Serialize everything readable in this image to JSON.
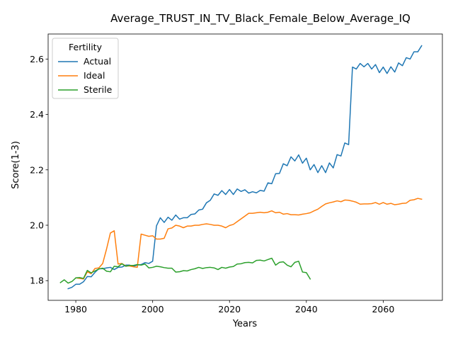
{
  "chart_data": {
    "type": "line",
    "title": "Average_TRUST_IN_TV_Black_Female_Below_Average_IQ",
    "xlabel": "Years",
    "ylabel": "Score(1-3)",
    "xlim": [
      1972.8,
      2075.4
    ],
    "ylim": [
      1.7289,
      2.6904
    ],
    "xticks": [
      1980,
      2000,
      2020,
      2040,
      2060
    ],
    "yticks": [
      1.8,
      2.0,
      2.2,
      2.4,
      2.6
    ],
    "xtick_labels": [
      "1980",
      "2000",
      "2020",
      "2040",
      "2060"
    ],
    "ytick_labels": [
      "1.8",
      "2.0",
      "2.2",
      "2.4",
      "2.6"
    ],
    "grid": false,
    "legend": {
      "title": "Fertility",
      "position": "top-left"
    },
    "series": [
      {
        "name": "Actual",
        "color": "#1f77b4",
        "x": [
          1978,
          1979,
          1980,
          1981,
          1982,
          1983,
          1984,
          1985,
          1986,
          1987,
          1988,
          1989,
          1990,
          1991,
          1992,
          1993,
          1994,
          1995,
          1996,
          1997,
          1998,
          1999,
          2000,
          2001,
          2002,
          2003,
          2004,
          2005,
          2006,
          2007,
          2008,
          2009,
          2010,
          2011,
          2012,
          2013,
          2014,
          2015,
          2016,
          2017,
          2018,
          2019,
          2020,
          2021,
          2022,
          2023,
          2024,
          2025,
          2026,
          2027,
          2028,
          2029,
          2030,
          2031,
          2032,
          2033,
          2034,
          2035,
          2036,
          2037,
          2038,
          2039,
          2040,
          2041,
          2042,
          2043,
          2044,
          2045,
          2046,
          2047,
          2048,
          2049,
          2050,
          2051,
          2052,
          2053,
          2054,
          2055,
          2056,
          2057,
          2058,
          2059,
          2060,
          2061,
          2062,
          2063,
          2064,
          2065,
          2066,
          2067,
          2068,
          2069,
          2070
        ],
        "y": [
          1.771,
          1.776,
          1.787,
          1.787,
          1.796,
          1.815,
          1.814,
          1.83,
          1.843,
          1.843,
          1.846,
          1.848,
          1.84,
          1.848,
          1.849,
          1.856,
          1.856,
          1.852,
          1.856,
          1.858,
          1.865,
          1.862,
          1.87,
          1.998,
          2.027,
          2.01,
          2.029,
          2.018,
          2.037,
          2.022,
          2.027,
          2.027,
          2.039,
          2.041,
          2.055,
          2.058,
          2.081,
          2.09,
          2.113,
          2.108,
          2.125,
          2.111,
          2.129,
          2.111,
          2.131,
          2.122,
          2.128,
          2.116,
          2.121,
          2.117,
          2.126,
          2.123,
          2.153,
          2.15,
          2.186,
          2.187,
          2.222,
          2.215,
          2.247,
          2.232,
          2.254,
          2.224,
          2.242,
          2.2,
          2.219,
          2.19,
          2.215,
          2.19,
          2.225,
          2.207,
          2.255,
          2.25,
          2.297,
          2.291,
          2.571,
          2.564,
          2.584,
          2.572,
          2.584,
          2.564,
          2.58,
          2.551,
          2.571,
          2.548,
          2.572,
          2.553,
          2.586,
          2.576,
          2.605,
          2.6,
          2.626,
          2.626,
          2.648
        ]
      },
      {
        "name": "Ideal",
        "color": "#ff7f0e",
        "x": [
          1980,
          1981,
          1982,
          1983,
          1984,
          1985,
          1986,
          1987,
          1988,
          1989,
          1990,
          1991,
          1992,
          1993,
          1994,
          1995,
          1996,
          1997,
          1998,
          1999,
          2000,
          2001,
          2002,
          2003,
          2004,
          2005,
          2006,
          2007,
          2008,
          2009,
          2010,
          2011,
          2012,
          2013,
          2014,
          2015,
          2016,
          2017,
          2018,
          2019,
          2020,
          2021,
          2022,
          2023,
          2024,
          2025,
          2026,
          2027,
          2028,
          2029,
          2030,
          2031,
          2032,
          2033,
          2034,
          2035,
          2036,
          2037,
          2038,
          2039,
          2040,
          2041,
          2042,
          2043,
          2044,
          2045,
          2046,
          2047,
          2048,
          2049,
          2050,
          2051,
          2052,
          2053,
          2054,
          2055,
          2056,
          2057,
          2058,
          2059,
          2060,
          2061,
          2062,
          2063,
          2064,
          2065,
          2066,
          2067,
          2068,
          2069,
          2070
        ],
        "y": [
          1.81,
          1.808,
          1.806,
          1.832,
          1.825,
          1.844,
          1.846,
          1.862,
          1.914,
          1.972,
          1.98,
          1.86,
          1.862,
          1.853,
          1.853,
          1.85,
          1.848,
          1.968,
          1.964,
          1.96,
          1.962,
          1.95,
          1.95,
          1.953,
          1.987,
          1.99,
          2.0,
          1.997,
          1.991,
          1.997,
          1.997,
          2.0,
          2.0,
          2.003,
          2.005,
          2.003,
          2.0,
          2.0,
          1.997,
          1.991,
          1.999,
          2.003,
          2.013,
          2.023,
          2.033,
          2.043,
          2.043,
          2.045,
          2.047,
          2.045,
          2.047,
          2.052,
          2.045,
          2.047,
          2.04,
          2.042,
          2.038,
          2.038,
          2.037,
          2.04,
          2.042,
          2.045,
          2.052,
          2.058,
          2.068,
          2.077,
          2.081,
          2.084,
          2.088,
          2.085,
          2.091,
          2.09,
          2.087,
          2.083,
          2.076,
          2.077,
          2.077,
          2.078,
          2.082,
          2.076,
          2.082,
          2.076,
          2.079,
          2.074,
          2.076,
          2.079,
          2.08,
          2.09,
          2.092,
          2.097,
          2.094
        ]
      },
      {
        "name": "Sterile",
        "color": "#2ca02c",
        "x": [
          1976,
          1977,
          1978,
          1979,
          1980,
          1981,
          1982,
          1983,
          1984,
          1985,
          1986,
          1987,
          1988,
          1989,
          1990,
          1991,
          1992,
          1993,
          1994,
          1995,
          1996,
          1997,
          1998,
          1999,
          2000,
          2001,
          2002,
          2003,
          2004,
          2005,
          2006,
          2007,
          2008,
          2009,
          2010,
          2011,
          2012,
          2013,
          2014,
          2015,
          2016,
          2017,
          2018,
          2019,
          2020,
          2021,
          2022,
          2023,
          2024,
          2025,
          2026,
          2027,
          2028,
          2029,
          2030,
          2031,
          2032,
          2033,
          2034,
          2035,
          2036,
          2037,
          2038,
          2039,
          2040,
          2041
        ],
        "y": [
          1.793,
          1.803,
          1.791,
          1.797,
          1.81,
          1.811,
          1.808,
          1.837,
          1.828,
          1.835,
          1.842,
          1.845,
          1.834,
          1.832,
          1.852,
          1.85,
          1.861,
          1.852,
          1.855,
          1.855,
          1.858,
          1.856,
          1.86,
          1.846,
          1.848,
          1.852,
          1.85,
          1.847,
          1.845,
          1.845,
          1.831,
          1.832,
          1.836,
          1.835,
          1.84,
          1.843,
          1.848,
          1.844,
          1.847,
          1.848,
          1.846,
          1.84,
          1.848,
          1.845,
          1.849,
          1.851,
          1.86,
          1.861,
          1.865,
          1.866,
          1.864,
          1.873,
          1.874,
          1.871,
          1.876,
          1.881,
          1.856,
          1.866,
          1.868,
          1.856,
          1.85,
          1.866,
          1.87,
          1.831,
          1.829,
          1.806
        ]
      }
    ]
  }
}
